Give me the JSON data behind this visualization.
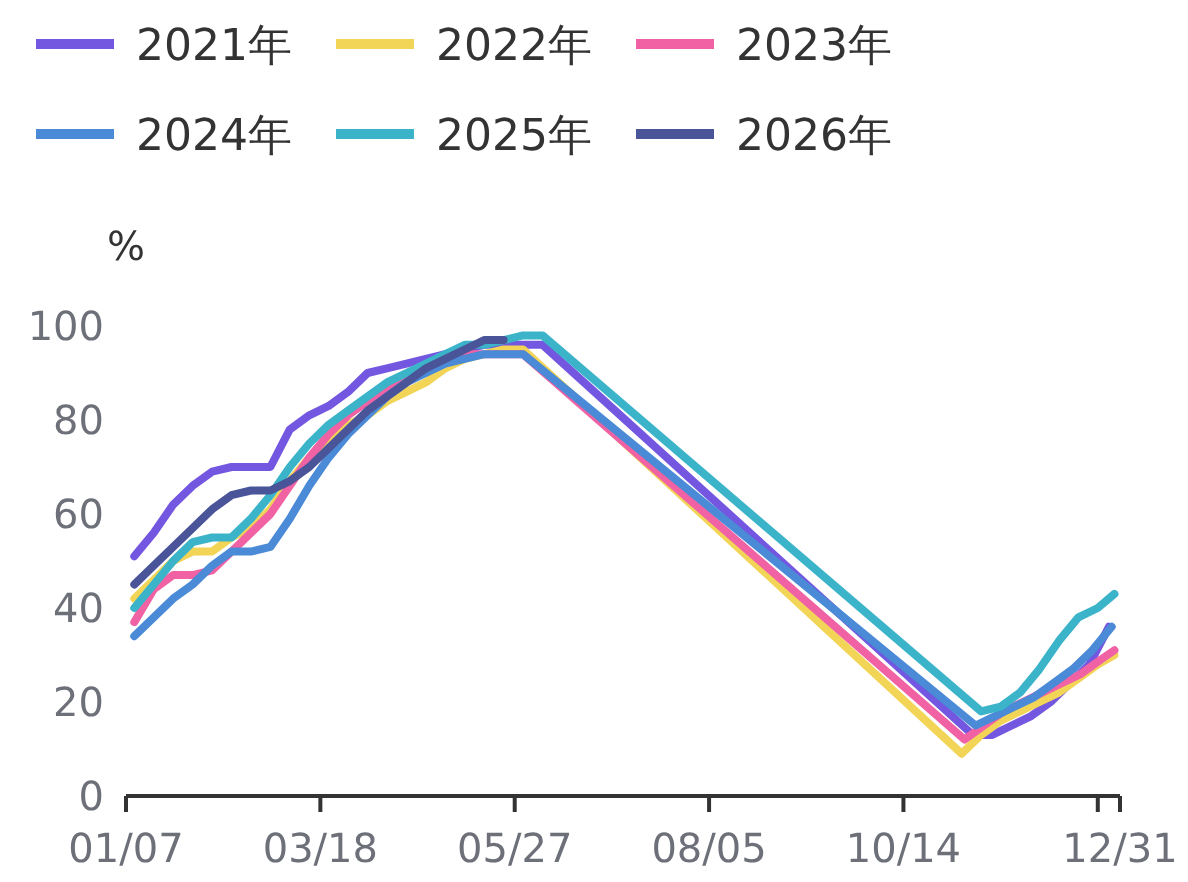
{
  "chart_data": {
    "type": "line",
    "ylabel": "%",
    "legend": "top left",
    "grid": false,
    "marker": "none",
    "line_style": "solid",
    "xlim": [
      "--01-07",
      "--12-31"
    ],
    "xticks": [
      {
        "value": "--01-07",
        "label": "01/07"
      },
      {
        "value": "--03-18",
        "label": "03/18"
      },
      {
        "value": "--05-27",
        "label": "05/27"
      },
      {
        "value": "--08-05",
        "label": "08/05"
      },
      {
        "value": "--10-14",
        "label": "10/14"
      },
      {
        "value": "--12-23",
        "label": null
      },
      {
        "value": "--12-31",
        "label": "12/31"
      }
    ],
    "ylim": [
      0,
      100
    ],
    "yticks": [
      0,
      20,
      40,
      60,
      80,
      100
    ],
    "series": [
      {
        "name": "2021年",
        "color": "#7357e0",
        "x": [
          "--01-10",
          "--01-17",
          "--01-24",
          "--01-31",
          "--02-07",
          "--02-14",
          "--02-21",
          "--02-28",
          "--03-07",
          "--03-14",
          "--03-21",
          "--03-28",
          "--04-04",
          "--04-11",
          "--04-18",
          "--04-25",
          "--05-02",
          "--05-09",
          "--05-16",
          "--05-23",
          "--05-30",
          "--06-06",
          "--11-08",
          "--11-15",
          "--11-22",
          "--11-29",
          "--12-06",
          "--12-13",
          "--12-20",
          "--12-27"
        ],
        "values": [
          51,
          56,
          62,
          66,
          69,
          70,
          70,
          70,
          78,
          81,
          83,
          86,
          90,
          91,
          92,
          93,
          94,
          95,
          96,
          96,
          96,
          96,
          13,
          13,
          15,
          17,
          20,
          24,
          28,
          36
        ]
      },
      {
        "name": "2022年",
        "color": "#f2d457",
        "x": [
          "--01-10",
          "--01-17",
          "--01-24",
          "--01-31",
          "--02-07",
          "--02-14",
          "--02-21",
          "--02-28",
          "--03-07",
          "--03-14",
          "--03-21",
          "--03-28",
          "--04-04",
          "--04-11",
          "--04-18",
          "--04-25",
          "--05-02",
          "--05-09",
          "--05-16",
          "--05-23",
          "--05-30",
          "--11-04",
          "--11-11",
          "--11-18",
          "--11-25",
          "--12-02",
          "--12-09",
          "--12-16",
          "--12-23",
          "--12-29"
        ],
        "values": [
          42,
          46,
          50,
          52,
          52,
          55,
          57,
          61,
          67,
          72,
          76,
          79,
          81,
          84,
          86,
          88,
          91,
          93,
          94,
          95,
          95,
          9,
          13,
          16,
          18,
          20,
          22,
          25,
          28,
          30
        ]
      },
      {
        "name": "2023年",
        "color": "#f062a4",
        "x": [
          "--01-10",
          "--01-17",
          "--01-24",
          "--01-31",
          "--02-07",
          "--02-14",
          "--02-21",
          "--02-28",
          "--03-07",
          "--03-14",
          "--03-21",
          "--03-28",
          "--04-04",
          "--04-11",
          "--04-18",
          "--04-25",
          "--05-02",
          "--05-09",
          "--05-16",
          "--05-23",
          "--05-30",
          "--11-05",
          "--11-12",
          "--11-19",
          "--11-26",
          "--12-03",
          "--12-10",
          "--12-17",
          "--12-24",
          "--12-29"
        ],
        "values": [
          37,
          44,
          47,
          47,
          48,
          52,
          56,
          60,
          66,
          72,
          77,
          81,
          84,
          87,
          89,
          91,
          93,
          94,
          94,
          94,
          94,
          12,
          15,
          18,
          20,
          22,
          24,
          26,
          29,
          31
        ]
      },
      {
        "name": "2024年",
        "color": "#4a8ad6",
        "x": [
          "--01-10",
          "--01-17",
          "--01-24",
          "--01-31",
          "--02-07",
          "--02-14",
          "--02-21",
          "--02-28",
          "--03-07",
          "--03-14",
          "--03-21",
          "--03-28",
          "--04-04",
          "--04-11",
          "--04-18",
          "--04-25",
          "--05-02",
          "--05-09",
          "--05-16",
          "--05-23",
          "--05-30",
          "--11-09",
          "--11-16",
          "--11-23",
          "--11-30",
          "--12-07",
          "--12-14",
          "--12-21",
          "--12-28"
        ],
        "values": [
          34,
          38,
          42,
          45,
          49,
          52,
          52,
          53,
          59,
          66,
          72,
          77,
          81,
          85,
          88,
          90,
          92,
          93,
          94,
          94,
          94,
          15,
          17,
          19,
          21,
          24,
          27,
          31,
          36
        ]
      },
      {
        "name": "2025年",
        "color": "#3bb3c9",
        "x": [
          "--01-10",
          "--01-17",
          "--01-24",
          "--01-31",
          "--02-07",
          "--02-14",
          "--02-21",
          "--02-28",
          "--03-07",
          "--03-14",
          "--03-21",
          "--03-28",
          "--04-04",
          "--04-11",
          "--04-18",
          "--04-25",
          "--05-02",
          "--05-09",
          "--05-16",
          "--05-23",
          "--05-30",
          "--06-06",
          "--11-11",
          "--11-18",
          "--11-25",
          "--12-02",
          "--12-09",
          "--12-16",
          "--12-23",
          "--12-29"
        ],
        "values": [
          40,
          45,
          50,
          54,
          55,
          55,
          59,
          64,
          70,
          75,
          79,
          82,
          85,
          88,
          90,
          92,
          94,
          96,
          96,
          97,
          98,
          98,
          18,
          19,
          22,
          27,
          33,
          38,
          40,
          43
        ]
      },
      {
        "name": "2026年",
        "color": "#4a5499",
        "x": [
          "--01-10",
          "--01-17",
          "--01-24",
          "--01-31",
          "--02-07",
          "--02-14",
          "--02-21",
          "--02-28",
          "--03-07",
          "--03-14",
          "--03-21",
          "--03-28",
          "--04-04",
          "--04-11",
          "--04-18",
          "--04-25",
          "--05-02",
          "--05-09",
          "--05-16",
          "--05-23"
        ],
        "values": [
          45,
          49,
          53,
          57,
          61,
          64,
          65,
          65,
          67,
          70,
          74,
          78,
          82,
          85,
          88,
          91,
          93,
          95,
          97,
          97
        ]
      }
    ]
  }
}
